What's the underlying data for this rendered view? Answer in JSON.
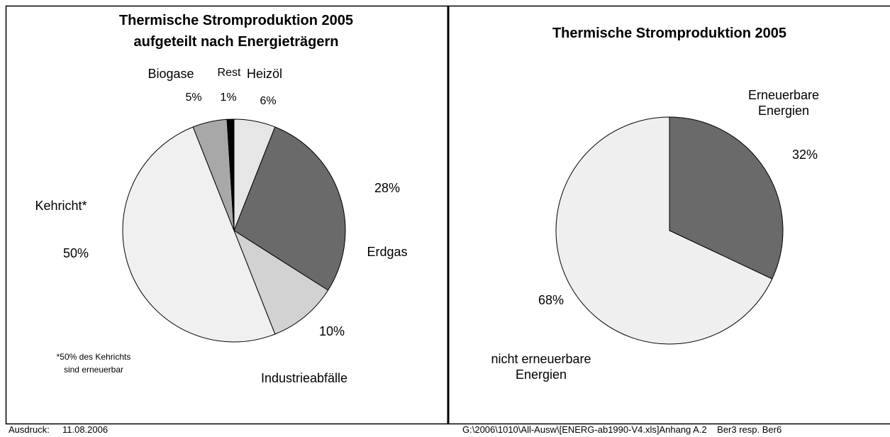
{
  "chart_data": [
    {
      "type": "pie",
      "title": "Thermische Stromproduktion 2005",
      "subtitle": "aufgeteilt nach Energieträgern",
      "categories": [
        "Heizöl",
        "Erdgas",
        "Industrieabfälle",
        "Kehricht*",
        "Biogase",
        "Rest"
      ],
      "values": [
        6,
        28,
        10,
        50,
        5,
        1
      ],
      "value_labels": [
        "6%",
        "28%",
        "10%",
        "50%",
        "5%",
        "1%"
      ],
      "colors": [
        "#e6e6e6",
        "#6a6a6a",
        "#d2d2d2",
        "#f0f0f0",
        "#a8a8a8",
        "#000000"
      ],
      "note": [
        "*50% des Kehrichts",
        "sind erneuerbar"
      ]
    },
    {
      "type": "pie",
      "title": "Thermische Stromproduktion 2005",
      "categories": [
        "Erneuerbare Energien",
        "nicht erneuerbare Energien"
      ],
      "values": [
        32,
        68
      ],
      "value_labels": [
        "32%",
        "68%"
      ],
      "colors": [
        "#6a6a6a",
        "#efefef"
      ]
    }
  ],
  "footer": {
    "left_label": "Ausdruck:",
    "date": "11.08.2006",
    "right": "G:\\2006\\1010\\All-Ausw\\[ENERG-ab1990-V4.xls]Anhang A.2    Ber3 resp. Ber6"
  }
}
